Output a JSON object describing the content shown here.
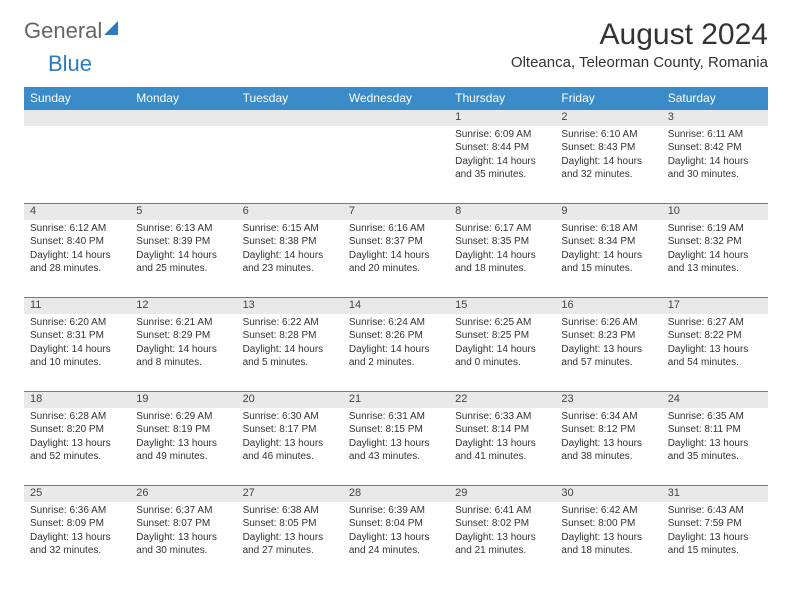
{
  "logo": {
    "part1": "General",
    "part2": "Blue"
  },
  "title": "August 2024",
  "location": "Olteanca, Teleorman County, Romania",
  "colors": {
    "header_bg": "#3b8bc8",
    "header_fg": "#ffffff",
    "daynum_bg": "#e9e9e9",
    "border": "#3b8bc8",
    "text": "#333333",
    "logo_blue": "#2b7bbf"
  },
  "day_headers": [
    "Sunday",
    "Monday",
    "Tuesday",
    "Wednesday",
    "Thursday",
    "Friday",
    "Saturday"
  ],
  "weeks": [
    [
      {
        "n": "",
        "lines": []
      },
      {
        "n": "",
        "lines": []
      },
      {
        "n": "",
        "lines": []
      },
      {
        "n": "",
        "lines": []
      },
      {
        "n": "1",
        "lines": [
          "Sunrise: 6:09 AM",
          "Sunset: 8:44 PM",
          "Daylight: 14 hours and 35 minutes."
        ]
      },
      {
        "n": "2",
        "lines": [
          "Sunrise: 6:10 AM",
          "Sunset: 8:43 PM",
          "Daylight: 14 hours and 32 minutes."
        ]
      },
      {
        "n": "3",
        "lines": [
          "Sunrise: 6:11 AM",
          "Sunset: 8:42 PM",
          "Daylight: 14 hours and 30 minutes."
        ]
      }
    ],
    [
      {
        "n": "4",
        "lines": [
          "Sunrise: 6:12 AM",
          "Sunset: 8:40 PM",
          "Daylight: 14 hours and 28 minutes."
        ]
      },
      {
        "n": "5",
        "lines": [
          "Sunrise: 6:13 AM",
          "Sunset: 8:39 PM",
          "Daylight: 14 hours and 25 minutes."
        ]
      },
      {
        "n": "6",
        "lines": [
          "Sunrise: 6:15 AM",
          "Sunset: 8:38 PM",
          "Daylight: 14 hours and 23 minutes."
        ]
      },
      {
        "n": "7",
        "lines": [
          "Sunrise: 6:16 AM",
          "Sunset: 8:37 PM",
          "Daylight: 14 hours and 20 minutes."
        ]
      },
      {
        "n": "8",
        "lines": [
          "Sunrise: 6:17 AM",
          "Sunset: 8:35 PM",
          "Daylight: 14 hours and 18 minutes."
        ]
      },
      {
        "n": "9",
        "lines": [
          "Sunrise: 6:18 AM",
          "Sunset: 8:34 PM",
          "Daylight: 14 hours and 15 minutes."
        ]
      },
      {
        "n": "10",
        "lines": [
          "Sunrise: 6:19 AM",
          "Sunset: 8:32 PM",
          "Daylight: 14 hours and 13 minutes."
        ]
      }
    ],
    [
      {
        "n": "11",
        "lines": [
          "Sunrise: 6:20 AM",
          "Sunset: 8:31 PM",
          "Daylight: 14 hours and 10 minutes."
        ]
      },
      {
        "n": "12",
        "lines": [
          "Sunrise: 6:21 AM",
          "Sunset: 8:29 PM",
          "Daylight: 14 hours and 8 minutes."
        ]
      },
      {
        "n": "13",
        "lines": [
          "Sunrise: 6:22 AM",
          "Sunset: 8:28 PM",
          "Daylight: 14 hours and 5 minutes."
        ]
      },
      {
        "n": "14",
        "lines": [
          "Sunrise: 6:24 AM",
          "Sunset: 8:26 PM",
          "Daylight: 14 hours and 2 minutes."
        ]
      },
      {
        "n": "15",
        "lines": [
          "Sunrise: 6:25 AM",
          "Sunset: 8:25 PM",
          "Daylight: 14 hours and 0 minutes."
        ]
      },
      {
        "n": "16",
        "lines": [
          "Sunrise: 6:26 AM",
          "Sunset: 8:23 PM",
          "Daylight: 13 hours and 57 minutes."
        ]
      },
      {
        "n": "17",
        "lines": [
          "Sunrise: 6:27 AM",
          "Sunset: 8:22 PM",
          "Daylight: 13 hours and 54 minutes."
        ]
      }
    ],
    [
      {
        "n": "18",
        "lines": [
          "Sunrise: 6:28 AM",
          "Sunset: 8:20 PM",
          "Daylight: 13 hours and 52 minutes."
        ]
      },
      {
        "n": "19",
        "lines": [
          "Sunrise: 6:29 AM",
          "Sunset: 8:19 PM",
          "Daylight: 13 hours and 49 minutes."
        ]
      },
      {
        "n": "20",
        "lines": [
          "Sunrise: 6:30 AM",
          "Sunset: 8:17 PM",
          "Daylight: 13 hours and 46 minutes."
        ]
      },
      {
        "n": "21",
        "lines": [
          "Sunrise: 6:31 AM",
          "Sunset: 8:15 PM",
          "Daylight: 13 hours and 43 minutes."
        ]
      },
      {
        "n": "22",
        "lines": [
          "Sunrise: 6:33 AM",
          "Sunset: 8:14 PM",
          "Daylight: 13 hours and 41 minutes."
        ]
      },
      {
        "n": "23",
        "lines": [
          "Sunrise: 6:34 AM",
          "Sunset: 8:12 PM",
          "Daylight: 13 hours and 38 minutes."
        ]
      },
      {
        "n": "24",
        "lines": [
          "Sunrise: 6:35 AM",
          "Sunset: 8:11 PM",
          "Daylight: 13 hours and 35 minutes."
        ]
      }
    ],
    [
      {
        "n": "25",
        "lines": [
          "Sunrise: 6:36 AM",
          "Sunset: 8:09 PM",
          "Daylight: 13 hours and 32 minutes."
        ]
      },
      {
        "n": "26",
        "lines": [
          "Sunrise: 6:37 AM",
          "Sunset: 8:07 PM",
          "Daylight: 13 hours and 30 minutes."
        ]
      },
      {
        "n": "27",
        "lines": [
          "Sunrise: 6:38 AM",
          "Sunset: 8:05 PM",
          "Daylight: 13 hours and 27 minutes."
        ]
      },
      {
        "n": "28",
        "lines": [
          "Sunrise: 6:39 AM",
          "Sunset: 8:04 PM",
          "Daylight: 13 hours and 24 minutes."
        ]
      },
      {
        "n": "29",
        "lines": [
          "Sunrise: 6:41 AM",
          "Sunset: 8:02 PM",
          "Daylight: 13 hours and 21 minutes."
        ]
      },
      {
        "n": "30",
        "lines": [
          "Sunrise: 6:42 AM",
          "Sunset: 8:00 PM",
          "Daylight: 13 hours and 18 minutes."
        ]
      },
      {
        "n": "31",
        "lines": [
          "Sunrise: 6:43 AM",
          "Sunset: 7:59 PM",
          "Daylight: 13 hours and 15 minutes."
        ]
      }
    ]
  ]
}
